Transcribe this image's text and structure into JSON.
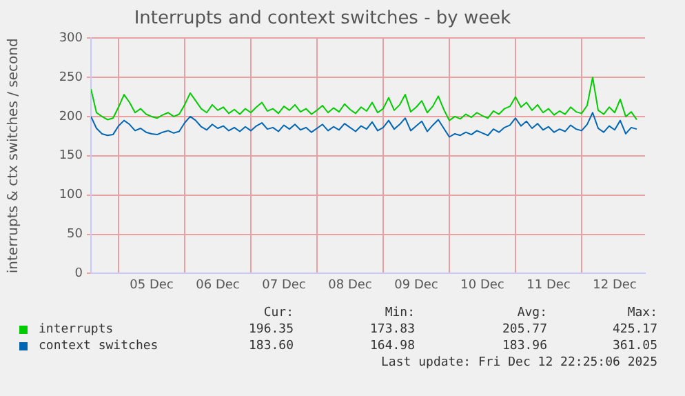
{
  "chart_data": {
    "type": "line",
    "title": "Interrupts and context switches - by week",
    "ylabel": "interrupts & ctx switches / second",
    "x": [
      "2025-12-04T14:00",
      "2025-12-04T16:00",
      "2025-12-04T18:00",
      "2025-12-04T20:00",
      "2025-12-04T22:00",
      "2025-12-05T00:00",
      "2025-12-05T02:00",
      "2025-12-05T04:00",
      "2025-12-05T06:00",
      "2025-12-05T08:00",
      "2025-12-05T10:00",
      "2025-12-05T12:00",
      "2025-12-05T14:00",
      "2025-12-05T16:00",
      "2025-12-05T18:00",
      "2025-12-05T20:00",
      "2025-12-05T22:00",
      "2025-12-06T00:00",
      "2025-12-06T02:00",
      "2025-12-06T04:00",
      "2025-12-06T06:00",
      "2025-12-06T08:00",
      "2025-12-06T10:00",
      "2025-12-06T12:00",
      "2025-12-06T14:00",
      "2025-12-06T16:00",
      "2025-12-06T18:00",
      "2025-12-06T20:00",
      "2025-12-06T22:00",
      "2025-12-07T00:00",
      "2025-12-07T02:00",
      "2025-12-07T04:00",
      "2025-12-07T06:00",
      "2025-12-07T08:00",
      "2025-12-07T10:00",
      "2025-12-07T12:00",
      "2025-12-07T14:00",
      "2025-12-07T16:00",
      "2025-12-07T18:00",
      "2025-12-07T20:00",
      "2025-12-07T22:00",
      "2025-12-08T00:00",
      "2025-12-08T02:00",
      "2025-12-08T04:00",
      "2025-12-08T06:00",
      "2025-12-08T08:00",
      "2025-12-08T10:00",
      "2025-12-08T12:00",
      "2025-12-08T14:00",
      "2025-12-08T16:00",
      "2025-12-08T18:00",
      "2025-12-08T20:00",
      "2025-12-08T22:00",
      "2025-12-09T00:00",
      "2025-12-09T02:00",
      "2025-12-09T04:00",
      "2025-12-09T06:00",
      "2025-12-09T08:00",
      "2025-12-09T10:00",
      "2025-12-09T12:00",
      "2025-12-09T14:00",
      "2025-12-09T16:00",
      "2025-12-09T18:00",
      "2025-12-09T20:00",
      "2025-12-09T22:00",
      "2025-12-10T00:00",
      "2025-12-10T02:00",
      "2025-12-10T04:00",
      "2025-12-10T06:00",
      "2025-12-10T08:00",
      "2025-12-10T10:00",
      "2025-12-10T12:00",
      "2025-12-10T14:00",
      "2025-12-10T16:00",
      "2025-12-10T18:00",
      "2025-12-10T20:00",
      "2025-12-10T22:00",
      "2025-12-11T00:00",
      "2025-12-11T02:00",
      "2025-12-11T04:00",
      "2025-12-11T06:00",
      "2025-12-11T08:00",
      "2025-12-11T10:00",
      "2025-12-11T12:00",
      "2025-12-11T14:00",
      "2025-12-11T16:00",
      "2025-12-11T18:00",
      "2025-12-11T20:00",
      "2025-12-11T22:00",
      "2025-12-12T00:00",
      "2025-12-12T02:00",
      "2025-12-12T04:00",
      "2025-12-12T06:00",
      "2025-12-12T08:00",
      "2025-12-12T10:00",
      "2025-12-12T12:00",
      "2025-12-12T14:00",
      "2025-12-12T16:00",
      "2025-12-12T18:00",
      "2025-12-12T20:00"
    ],
    "series": [
      {
        "name": "interrupts",
        "color": "#00cc00",
        "values": [
          235,
          205,
          200,
          196,
          198,
          212,
          228,
          218,
          205,
          210,
          203,
          200,
          198,
          202,
          205,
          200,
          203,
          215,
          230,
          220,
          210,
          205,
          215,
          208,
          212,
          204,
          209,
          203,
          210,
          205,
          212,
          218,
          207,
          210,
          204,
          213,
          208,
          215,
          206,
          210,
          203,
          208,
          214,
          205,
          211,
          206,
          216,
          209,
          204,
          212,
          207,
          218,
          205,
          210,
          224,
          208,
          215,
          228,
          206,
          212,
          220,
          205,
          213,
          226,
          209,
          195,
          200,
          197,
          203,
          199,
          205,
          201,
          198,
          207,
          203,
          210,
          213,
          225,
          212,
          218,
          208,
          215,
          205,
          210,
          202,
          207,
          203,
          212,
          206,
          204,
          214,
          250,
          208,
          203,
          212,
          205,
          222,
          200,
          206,
          196
        ]
      },
      {
        "name": "context switches",
        "color": "#0066b3",
        "values": [
          200,
          185,
          178,
          176,
          177,
          188,
          195,
          190,
          182,
          185,
          180,
          178,
          177,
          180,
          182,
          179,
          181,
          192,
          200,
          195,
          187,
          183,
          190,
          185,
          188,
          182,
          186,
          181,
          187,
          182,
          188,
          192,
          184,
          186,
          181,
          189,
          184,
          190,
          183,
          186,
          180,
          185,
          190,
          182,
          187,
          183,
          191,
          186,
          181,
          188,
          184,
          193,
          182,
          186,
          195,
          184,
          190,
          198,
          182,
          188,
          194,
          181,
          189,
          196,
          185,
          174,
          178,
          176,
          180,
          177,
          182,
          179,
          176,
          184,
          180,
          186,
          189,
          198,
          188,
          194,
          185,
          191,
          183,
          187,
          180,
          184,
          181,
          189,
          184,
          182,
          190,
          205,
          185,
          180,
          188,
          183,
          195,
          178,
          186,
          184
        ]
      }
    ],
    "xlim": [
      "2025-12-04T14:00",
      "2025-12-12T23:00"
    ],
    "xticks": [
      {
        "value": "2025-12-05T00:00",
        "label": null
      },
      {
        "value": "2025-12-05T12:00",
        "label": "05 Dec"
      },
      {
        "value": "2025-12-06T00:00",
        "label": null
      },
      {
        "value": "2025-12-06T12:00",
        "label": "06 Dec"
      },
      {
        "value": "2025-12-07T00:00",
        "label": null
      },
      {
        "value": "2025-12-07T12:00",
        "label": "07 Dec"
      },
      {
        "value": "2025-12-08T00:00",
        "label": null
      },
      {
        "value": "2025-12-08T12:00",
        "label": "08 Dec"
      },
      {
        "value": "2025-12-09T00:00",
        "label": null
      },
      {
        "value": "2025-12-09T12:00",
        "label": "09 Dec"
      },
      {
        "value": "2025-12-10T00:00",
        "label": null
      },
      {
        "value": "2025-12-10T12:00",
        "label": "10 Dec"
      },
      {
        "value": "2025-12-11T00:00",
        "label": null
      },
      {
        "value": "2025-12-11T12:00",
        "label": "11 Dec"
      },
      {
        "value": "2025-12-12T00:00",
        "label": null
      },
      {
        "value": "2025-12-12T12:00",
        "label": "12 Dec"
      }
    ],
    "ylim": [
      0,
      300
    ],
    "yticks": [
      0,
      50,
      100,
      150,
      200,
      250,
      300
    ],
    "grid": true,
    "legend": "bottom",
    "marker": "none",
    "line_style": "solid",
    "annotations": [
      "Cur:",
      "Min:",
      "Avg:",
      "Max:",
      "196.35",
      "173.83",
      "205.77",
      "425.17",
      "183.60",
      "164.98",
      "183.96",
      "361.05",
      "Last update: Fri Dec 12 22:25:06 2025"
    ]
  }
}
